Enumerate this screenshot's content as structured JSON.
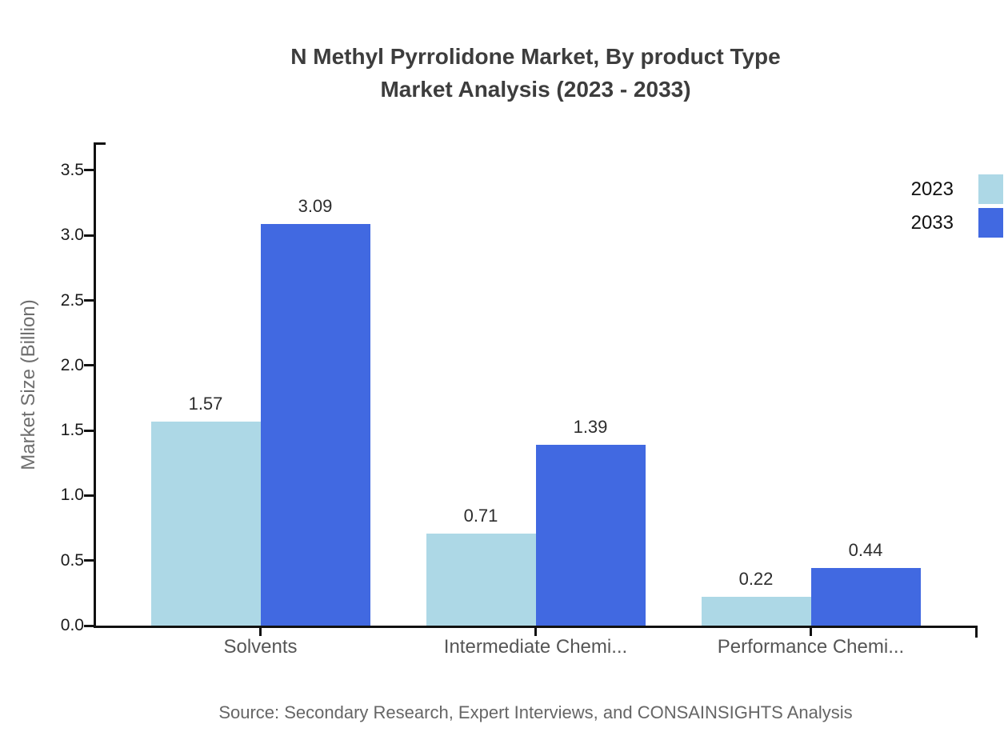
{
  "title": {
    "line1": "N Methyl Pyrrolidone Market, By product Type",
    "line2": "Market Analysis (2023 - 2033)"
  },
  "source": "Source: Secondary Research, Expert Interviews, and CONSAINSIGHTS Analysis",
  "colors": {
    "series_2023": "#ADD8E6",
    "series_2033": "#4169E1",
    "axis": "#111111",
    "title_text": "#3d3d3d",
    "category_text": "#565656",
    "source_text": "#666666"
  },
  "chart_data": {
    "type": "bar",
    "title": "N Methyl Pyrrolidone Market, By product Type Market Analysis (2023 - 2033)",
    "categories": [
      "Solvents",
      "Intermediate Chemi...",
      "Performance Chemi..."
    ],
    "series": [
      {
        "name": "2023",
        "color": "#ADD8E6",
        "values": [
          1.57,
          0.71,
          0.22
        ]
      },
      {
        "name": "2033",
        "color": "#4169E1",
        "values": [
          3.09,
          1.39,
          0.44
        ]
      }
    ],
    "xlabel": "",
    "ylabel": "Market Size (Billion)",
    "ylim": [
      0,
      3.7
    ],
    "yticks": [
      0.0,
      0.5,
      1.0,
      1.5,
      2.0,
      2.5,
      3.0,
      3.5
    ],
    "grid": false,
    "legend_position": "top-right",
    "value_labels": true,
    "value_label_format": "0.00",
    "bar_orientation": "vertical"
  }
}
